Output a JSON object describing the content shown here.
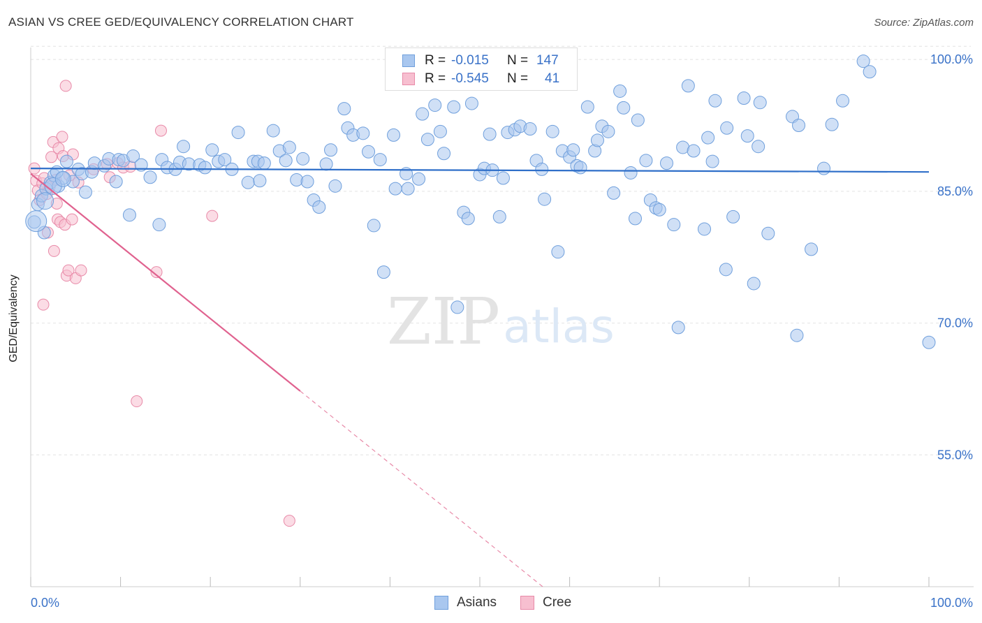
{
  "title": "ASIAN VS CREE GED/EQUIVALENCY CORRELATION CHART",
  "source": "Source: ZipAtlas.com",
  "watermark": {
    "zip": "ZIP",
    "atlas": "atlas"
  },
  "legend_top": {
    "rows": [
      {
        "r_label": "R =",
        "r_value": "-0.015",
        "n_label": "N =",
        "n_value": "147",
        "color": "#a9c7ef",
        "border": "#6f9fdc"
      },
      {
        "r_label": "R =",
        "r_value": "-0.545",
        "n_label": "N =",
        "n_value": "41",
        "color": "#f7bfd0",
        "border": "#e88aa8"
      }
    ]
  },
  "legend_bottom": [
    {
      "label": "Asians",
      "color": "#a9c7ef",
      "border": "#6f9fdc"
    },
    {
      "label": "Cree",
      "color": "#f7bfd0",
      "border": "#e88aa8"
    }
  ],
  "chart_data": {
    "type": "scatter",
    "title": "ASIAN VS CREE GED/EQUIVALENCY CORRELATION CHART",
    "xlabel": "",
    "ylabel": "GED/Equivalency",
    "xlim": [
      0,
      100
    ],
    "ylim": [
      40,
      102
    ],
    "x_tick_labels": [
      "0.0%",
      "100.0%"
    ],
    "y_ticks": [
      55,
      70,
      85,
      100
    ],
    "y_tick_labels": [
      "55.0%",
      "70.0%",
      "85.0%",
      "100.0%"
    ],
    "grid": true,
    "series": [
      {
        "name": "Asians",
        "color": "#6f9fdc",
        "fill": "#a9c7ef",
        "trend": {
          "x0": 0,
          "y0": 87.6,
          "x1": 100,
          "y1": 87.2,
          "solid_to": 100
        },
        "points": [
          [
            0.4,
            81.5
          ],
          [
            0.8,
            83.5
          ],
          [
            1.2,
            84.5
          ],
          [
            1.7,
            85.3
          ],
          [
            2.2,
            86.0
          ],
          [
            2.6,
            86.8
          ],
          [
            3.1,
            85.6
          ],
          [
            4.7,
            86.1
          ],
          [
            3.6,
            86.5
          ],
          [
            5.3,
            87.5
          ],
          [
            5.7,
            87.0
          ],
          [
            6.8,
            87.2
          ],
          [
            7.1,
            88.2
          ],
          [
            8.2,
            87.9
          ],
          [
            8.7,
            88.7
          ],
          [
            9.8,
            88.6
          ],
          [
            10.3,
            88.5
          ],
          [
            11.4,
            89.0
          ],
          [
            12.3,
            88.0
          ],
          [
            13.3,
            86.6
          ],
          [
            14.6,
            88.6
          ],
          [
            15.2,
            87.7
          ],
          [
            16.1,
            87.5
          ],
          [
            16.6,
            88.3
          ],
          [
            17.0,
            90.1
          ],
          [
            17.6,
            88.1
          ],
          [
            18.8,
            88.0
          ],
          [
            19.4,
            87.7
          ],
          [
            20.2,
            89.7
          ],
          [
            20.9,
            88.4
          ],
          [
            21.6,
            88.6
          ],
          [
            22.4,
            87.5
          ],
          [
            23.1,
            91.7
          ],
          [
            24.2,
            86.0
          ],
          [
            24.8,
            88.4
          ],
          [
            25.3,
            88.4
          ],
          [
            25.5,
            86.2
          ],
          [
            26.0,
            88.2
          ],
          [
            27.0,
            91.9
          ],
          [
            27.7,
            89.6
          ],
          [
            28.4,
            88.5
          ],
          [
            28.8,
            90.0
          ],
          [
            29.6,
            86.3
          ],
          [
            30.3,
            88.7
          ],
          [
            30.8,
            86.1
          ],
          [
            31.5,
            84.0
          ],
          [
            32.1,
            83.2
          ],
          [
            32.9,
            88.1
          ],
          [
            33.4,
            89.7
          ],
          [
            33.9,
            85.6
          ],
          [
            34.9,
            94.4
          ],
          [
            35.3,
            92.2
          ],
          [
            35.9,
            91.4
          ],
          [
            37.0,
            91.6
          ],
          [
            37.6,
            89.5
          ],
          [
            38.2,
            81.1
          ],
          [
            38.9,
            88.6
          ],
          [
            39.3,
            75.8
          ],
          [
            40.4,
            91.4
          ],
          [
            40.6,
            85.3
          ],
          [
            41.8,
            87.0
          ],
          [
            42.0,
            85.3
          ],
          [
            43.2,
            86.4
          ],
          [
            43.6,
            93.8
          ],
          [
            44.2,
            90.9
          ],
          [
            45.0,
            94.8
          ],
          [
            45.6,
            91.8
          ],
          [
            46.0,
            89.3
          ],
          [
            47.1,
            94.6
          ],
          [
            47.5,
            71.8
          ],
          [
            48.2,
            82.6
          ],
          [
            48.7,
            81.9
          ],
          [
            49.1,
            95.0
          ],
          [
            50.0,
            86.9
          ],
          [
            50.5,
            87.6
          ],
          [
            51.1,
            91.5
          ],
          [
            51.4,
            87.4
          ],
          [
            52.2,
            82.1
          ],
          [
            52.6,
            86.5
          ],
          [
            53.1,
            91.7
          ],
          [
            53.9,
            92.0
          ],
          [
            54.5,
            92.4
          ],
          [
            55.6,
            92.1
          ],
          [
            56.3,
            88.5
          ],
          [
            56.9,
            87.5
          ],
          [
            57.2,
            84.1
          ],
          [
            58.1,
            91.8
          ],
          [
            58.7,
            78.1
          ],
          [
            59.2,
            89.6
          ],
          [
            60.0,
            88.9
          ],
          [
            60.4,
            89.7
          ],
          [
            60.8,
            87.9
          ],
          [
            61.2,
            87.7
          ],
          [
            62.0,
            94.6
          ],
          [
            62.8,
            89.6
          ],
          [
            63.1,
            90.8
          ],
          [
            63.6,
            92.4
          ],
          [
            64.3,
            91.8
          ],
          [
            64.9,
            84.8
          ],
          [
            65.6,
            96.4
          ],
          [
            66.0,
            94.5
          ],
          [
            66.8,
            87.1
          ],
          [
            67.3,
            81.9
          ],
          [
            67.6,
            93.1
          ],
          [
            68.5,
            88.5
          ],
          [
            69.0,
            84.0
          ],
          [
            69.6,
            83.1
          ],
          [
            70.0,
            82.9
          ],
          [
            70.8,
            88.2
          ],
          [
            71.6,
            81.2
          ],
          [
            72.6,
            90.0
          ],
          [
            73.2,
            97.0
          ],
          [
            73.8,
            89.6
          ],
          [
            75.0,
            80.7
          ],
          [
            75.4,
            91.1
          ],
          [
            75.9,
            88.4
          ],
          [
            76.2,
            95.3
          ],
          [
            77.4,
            76.1
          ],
          [
            78.2,
            82.1
          ],
          [
            79.4,
            95.6
          ],
          [
            79.8,
            91.3
          ],
          [
            80.5,
            74.5
          ],
          [
            81.0,
            90.1
          ],
          [
            81.2,
            95.1
          ],
          [
            82.1,
            80.2
          ],
          [
            84.8,
            93.5
          ],
          [
            85.5,
            92.5
          ],
          [
            88.3,
            87.6
          ],
          [
            89.2,
            92.6
          ],
          [
            90.4,
            95.3
          ],
          [
            92.7,
            99.8
          ],
          [
            93.4,
            98.6
          ],
          [
            100.0,
            67.8
          ],
          [
            77.5,
            92.2
          ],
          [
            85.3,
            68.6
          ],
          [
            72.1,
            69.5
          ],
          [
            86.9,
            78.4
          ],
          [
            6.1,
            84.9
          ],
          [
            1.5,
            80.3
          ],
          [
            2.9,
            87.2
          ],
          [
            4.0,
            88.4
          ],
          [
            9.5,
            86.1
          ],
          [
            11.0,
            82.3
          ],
          [
            14.3,
            81.2
          ]
        ]
      },
      {
        "name": "Cree",
        "color": "#e88aa8",
        "fill": "#f7bfd0",
        "trend": {
          "x0": 0,
          "y0": 87.0,
          "x1": 57,
          "y1": 40.0,
          "solid_to": 30
        },
        "points": [
          [
            0.4,
            87.6
          ],
          [
            0.6,
            86.2
          ],
          [
            0.8,
            85.1
          ],
          [
            1.0,
            84.0
          ],
          [
            1.3,
            85.9
          ],
          [
            1.5,
            86.5
          ],
          [
            1.8,
            84.7
          ],
          [
            1.9,
            80.3
          ],
          [
            2.1,
            85.5
          ],
          [
            2.3,
            88.9
          ],
          [
            2.5,
            90.6
          ],
          [
            2.6,
            78.2
          ],
          [
            2.8,
            86.3
          ],
          [
            2.9,
            83.6
          ],
          [
            3.0,
            81.8
          ],
          [
            3.1,
            89.9
          ],
          [
            3.3,
            81.5
          ],
          [
            3.5,
            91.2
          ],
          [
            3.6,
            89.0
          ],
          [
            3.8,
            81.2
          ],
          [
            3.9,
            97.0
          ],
          [
            4.0,
            75.4
          ],
          [
            4.2,
            76.0
          ],
          [
            4.3,
            86.8
          ],
          [
            4.6,
            81.8
          ],
          [
            4.7,
            89.2
          ],
          [
            5.0,
            75.1
          ],
          [
            5.3,
            86.0
          ],
          [
            5.6,
            76.0
          ],
          [
            7.0,
            87.5
          ],
          [
            8.5,
            88.1
          ],
          [
            8.8,
            86.6
          ],
          [
            9.7,
            88.2
          ],
          [
            10.3,
            87.7
          ],
          [
            11.1,
            87.8
          ],
          [
            14.0,
            75.8
          ],
          [
            14.5,
            91.9
          ],
          [
            11.8,
            61.1
          ],
          [
            20.2,
            82.2
          ],
          [
            28.8,
            47.5
          ],
          [
            1.4,
            72.1
          ]
        ]
      }
    ]
  }
}
